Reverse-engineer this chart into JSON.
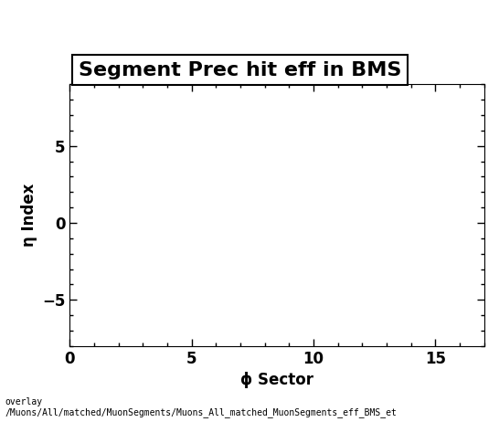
{
  "title": "Segment Prec hit eff in BMS",
  "xlabel": "ϕ Sector",
  "ylabel": "η Index",
  "xlim": [
    0,
    17
  ],
  "ylim": [
    -8,
    9
  ],
  "xticks": [
    0,
    5,
    10,
    15
  ],
  "yticks": [
    -5,
    0,
    5
  ],
  "background_color": "#ffffff",
  "plot_bg_color": "#ffffff",
  "title_fontsize": 16,
  "axis_fontsize": 12,
  "tick_fontsize": 12,
  "footer_text": "overlay\n/Muons/All/matched/MuonSegments/Muons_All_matched_MuonSegments_eff_BMS_et",
  "footer_fontsize": 7.0
}
